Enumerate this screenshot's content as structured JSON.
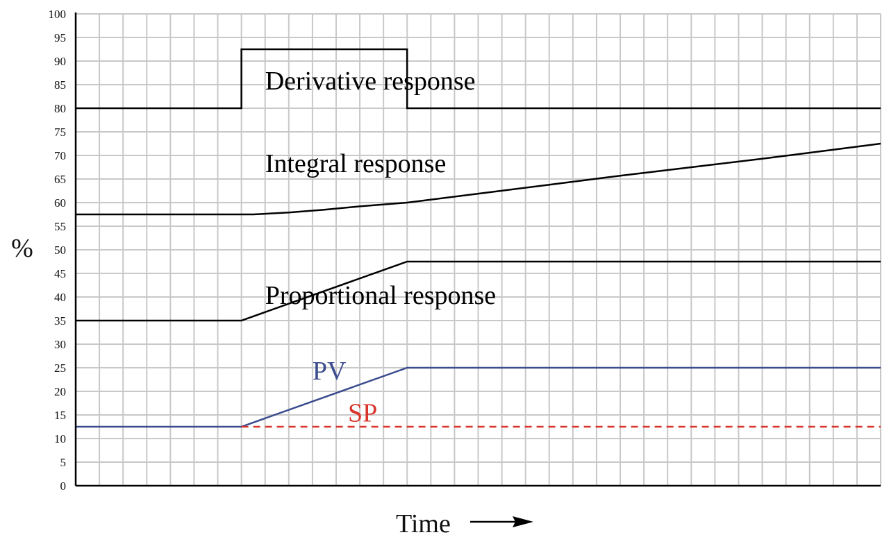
{
  "chart_data": {
    "type": "line",
    "title": "",
    "xlabel": "Time",
    "ylabel": "%",
    "ylim": [
      0,
      100
    ],
    "xlim": [
      0,
      34
    ],
    "yticks": [
      "0",
      "5",
      "10",
      "15",
      "20",
      "25",
      "30",
      "35",
      "40",
      "45",
      "50",
      "55",
      "60",
      "65",
      "70",
      "75",
      "80",
      "85",
      "90",
      "95",
      "100"
    ],
    "grid": true,
    "legend": "none",
    "series": [
      {
        "key": "derivative",
        "color": "#000000",
        "dashed": false,
        "x": [
          0,
          7,
          7,
          14,
          14,
          34
        ],
        "y": [
          80,
          80,
          92.5,
          92.5,
          80,
          80
        ]
      },
      {
        "key": "integral",
        "color": "#000000",
        "dashed": false,
        "x": [
          0,
          7,
          7.5,
          9,
          10.5,
          12,
          14,
          17,
          20,
          23,
          26,
          29,
          32,
          34
        ],
        "y": [
          57.5,
          57.5,
          57.5,
          57.9,
          58.5,
          59.2,
          60,
          61.9,
          63.8,
          65.7,
          67.5,
          69.3,
          71.2,
          72.5
        ]
      },
      {
        "key": "proportional",
        "color": "#000000",
        "dashed": false,
        "x": [
          0,
          7,
          14,
          34
        ],
        "y": [
          35,
          35,
          47.5,
          47.5
        ]
      },
      {
        "key": "pv",
        "color": "#3b4c8e",
        "dashed": false,
        "x": [
          0,
          7,
          14,
          34
        ],
        "y": [
          12.5,
          12.5,
          25,
          25
        ]
      },
      {
        "key": "sp",
        "color": "#d9342b",
        "dashed": true,
        "x": [
          7,
          34
        ],
        "y": [
          12.5,
          12.5
        ]
      }
    ],
    "annotations": [
      {
        "key": "derivative",
        "text": "Derivative response",
        "x": 8,
        "y": 84,
        "color": "#000000"
      },
      {
        "key": "integral",
        "text": "Integral response",
        "x": 8,
        "y": 66.5,
        "color": "#000000"
      },
      {
        "key": "proportional",
        "text": "Proportional response",
        "x": 8,
        "y": 38.5,
        "color": "#000000"
      },
      {
        "key": "pv",
        "text": "PV",
        "x": 10,
        "y": 22.5,
        "color": "#3b4c8e"
      },
      {
        "key": "sp",
        "text": "SP",
        "x": 11.5,
        "y": 13.6,
        "color": "#d9342b"
      }
    ]
  }
}
